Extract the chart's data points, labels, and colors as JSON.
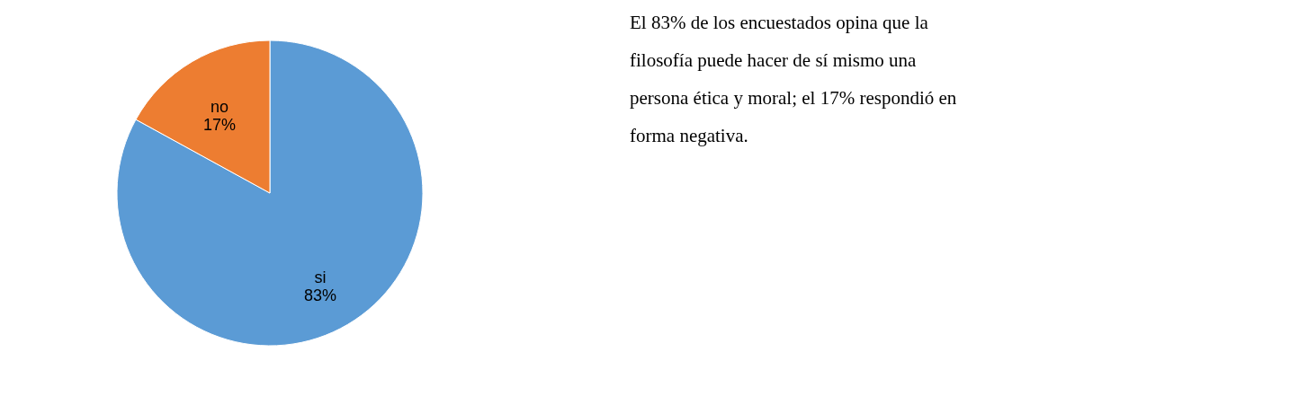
{
  "chart_data": {
    "type": "pie",
    "categories": [
      "si",
      "no"
    ],
    "values": [
      83,
      17
    ],
    "colors": [
      "#5b9bd5",
      "#ed7d31"
    ],
    "value_labels": [
      "83%",
      "17%"
    ],
    "legend": false,
    "annotations": [
      "El 83% de los encuestados opina que la filosofía puede hacer de sí mismo una persona ética y moral; el 17% respondió en forma negativa."
    ]
  }
}
